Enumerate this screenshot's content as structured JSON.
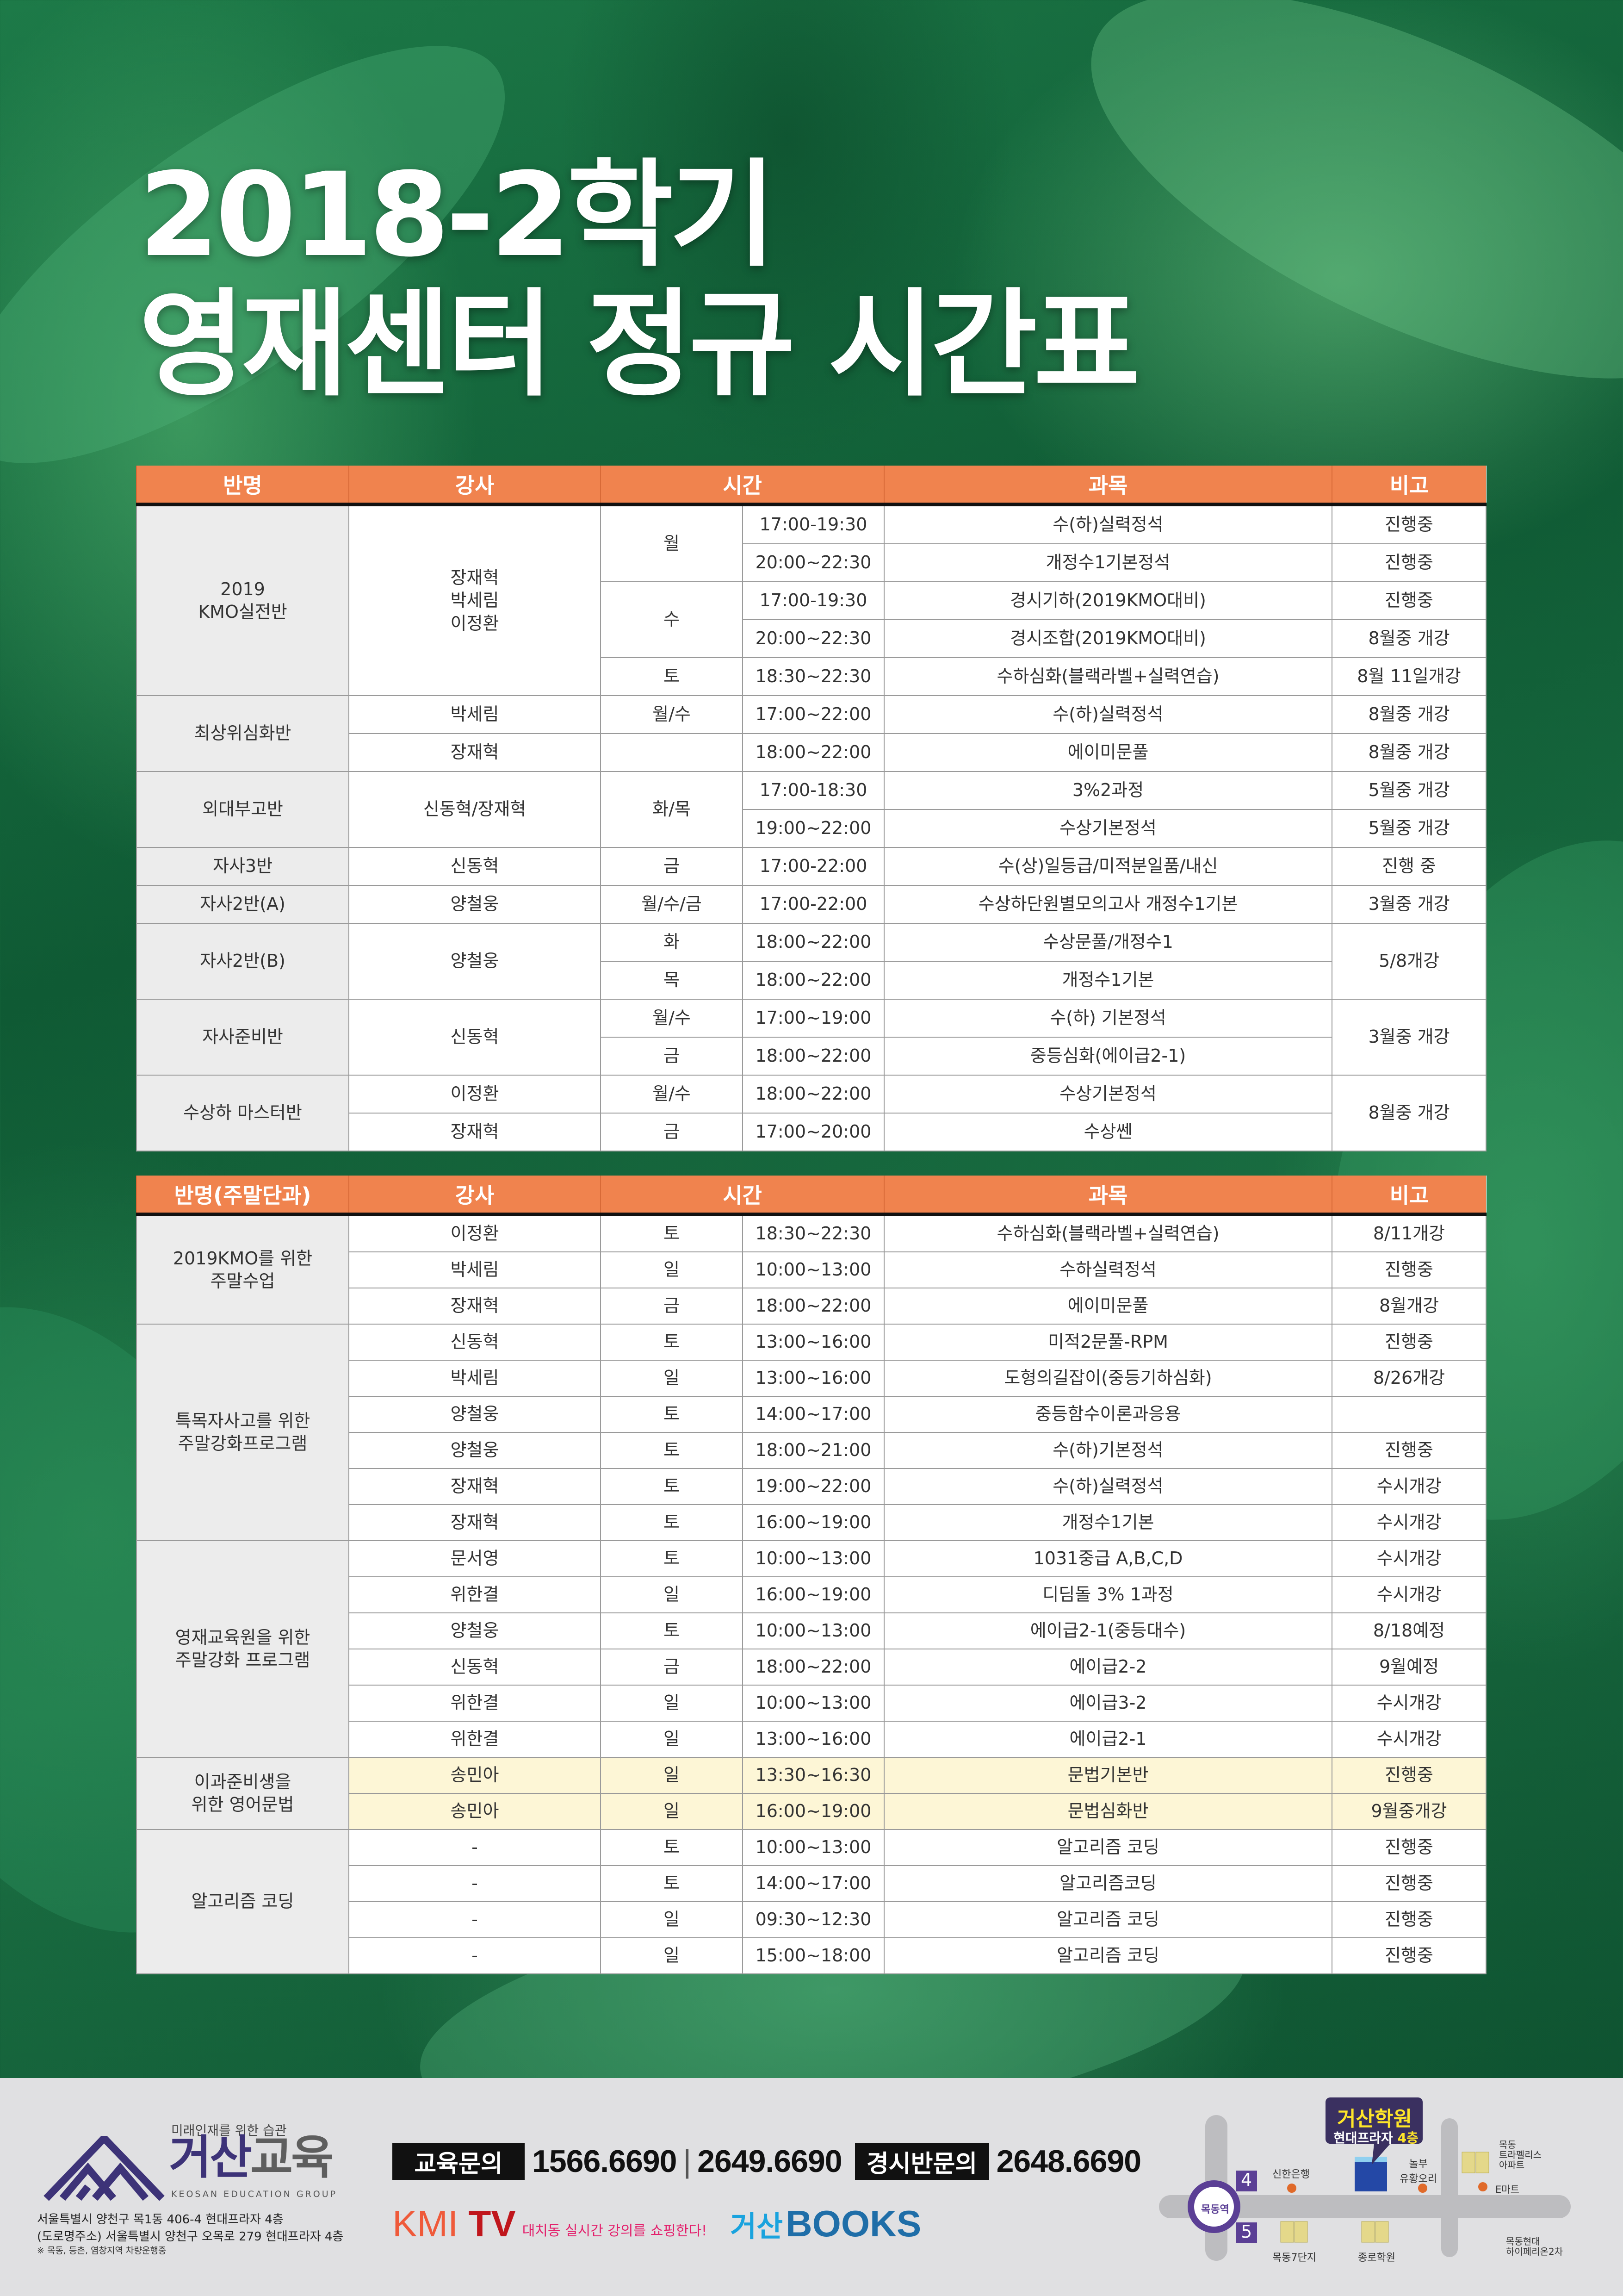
{
  "title": {
    "line1": "2018-2학기",
    "line2": "영재센터 정규 시간표"
  },
  "colors": {
    "header": "#f0834e",
    "class_cell": "#ececec",
    "highlight_row": "#fdf6d6",
    "brand_purple": "#3d3378",
    "kmi_red": "#c0161c",
    "books_blue": "#1f6ea8"
  },
  "tables": [
    {
      "headers": [
        "반명",
        "강사",
        "시간",
        "과목",
        "비고"
      ],
      "rows": [
        {
          "cells": [
            "2019\nKMO실전반",
            "장재혁\n박세림\n이정환",
            "월",
            "17:00-19:30",
            "수(하)실력정석",
            "진행중"
          ]
        },
        {
          "cells": [
            null,
            null,
            null,
            "20:00~22:30",
            "개정수1기본정석",
            "진행중"
          ]
        },
        {
          "cells": [
            null,
            null,
            "수",
            "17:00-19:30",
            "경시기하(2019KMO대비)",
            "진행중"
          ]
        },
        {
          "cells": [
            null,
            null,
            null,
            "20:00~22:30",
            "경시조합(2019KMO대비)",
            "8월중 개강"
          ]
        },
        {
          "cells": [
            null,
            null,
            "토",
            "18:30~22:30",
            "수하심화(블랙라벨+실력연습)",
            "8월 11일개강"
          ]
        },
        {
          "cells": [
            "최상위심화반",
            "박세림",
            "월/수",
            "17:00~22:00",
            "수(하)실력정석",
            "8월중 개강"
          ]
        },
        {
          "cells": [
            null,
            "장재혁",
            "",
            "18:00~22:00",
            "에이미문풀",
            "8월중 개강"
          ]
        },
        {
          "cells": [
            "외대부고반",
            "신동혁/장재혁",
            "화/목",
            "17:00-18:30",
            "3%2과정",
            "5월중 개강"
          ]
        },
        {
          "cells": [
            null,
            null,
            null,
            "19:00~22:00",
            "수상기본정석",
            "5월중 개강"
          ]
        },
        {
          "cells": [
            "자사3반",
            "신동혁",
            "금",
            "17:00-22:00",
            "수(상)일등급/미적분일품/내신",
            "진행 중"
          ]
        },
        {
          "cells": [
            "자사2반(A)",
            "양철웅",
            "월/수/금",
            "17:00-22:00",
            "수상하단원별모의고사 개정수1기본",
            "3월중 개강"
          ]
        },
        {
          "cells": [
            "자사2반(B)",
            "양철웅",
            "화",
            "18:00~22:00",
            "수상문풀/개정수1",
            "5/8개강"
          ]
        },
        {
          "cells": [
            null,
            null,
            "목",
            "18:00~22:00",
            "개정수1기본",
            null
          ]
        },
        {
          "cells": [
            "자사준비반",
            "신동혁",
            "월/수",
            "17:00~19:00",
            "수(하) 기본정석",
            "3월중 개강"
          ]
        },
        {
          "cells": [
            null,
            null,
            "금",
            "18:00~22:00",
            "중등심화(에이급2-1)",
            null
          ]
        },
        {
          "cells": [
            "수상하 마스터반",
            "이정환",
            "월/수",
            "18:00~22:00",
            "수상기본정석",
            "8월중 개강"
          ]
        },
        {
          "cells": [
            null,
            "장재혁",
            "금",
            "17:00~20:00",
            "수상쎈",
            null
          ]
        }
      ]
    },
    {
      "headers": [
        "반명(주말단과)",
        "강사",
        "시간",
        "과목",
        "비고"
      ],
      "rows": [
        {
          "cells": [
            "2019KMO를 위한\n주말수업",
            "이정환",
            "토",
            "18:30~22:30",
            "수하심화(블랙라벨+실력연습)",
            "8/11개강"
          ]
        },
        {
          "cells": [
            null,
            "박세림",
            "일",
            "10:00~13:00",
            "수하실력정석",
            "진행중"
          ]
        },
        {
          "cells": [
            null,
            "장재혁",
            "금",
            "18:00~22:00",
            "에이미문풀",
            "8월개강"
          ]
        },
        {
          "cells": [
            "특목자사고를 위한\n주말강화프로그램",
            "신동혁",
            "토",
            "13:00~16:00",
            "미적2문풀-RPM",
            "진행중"
          ]
        },
        {
          "cells": [
            null,
            "박세림",
            "일",
            "13:00~16:00",
            "도형의길잡이(중등기하심화)",
            "8/26개강"
          ]
        },
        {
          "cells": [
            null,
            "양철웅",
            "토",
            "14:00~17:00",
            "중등함수이론과응용",
            ""
          ]
        },
        {
          "cells": [
            null,
            "양철웅",
            "토",
            "18:00~21:00",
            "수(하)기본정석",
            "진행중"
          ]
        },
        {
          "cells": [
            null,
            "장재혁",
            "토",
            "19:00~22:00",
            "수(하)실력정석",
            "수시개강"
          ]
        },
        {
          "cells": [
            null,
            "장재혁",
            "토",
            "16:00~19:00",
            "개정수1기본",
            "수시개강"
          ]
        },
        {
          "cells": [
            "영재교육원을 위한\n주말강화 프로그램",
            "문서영",
            "토",
            "10:00~13:00",
            "1031중급 A,B,C,D",
            "수시개강"
          ]
        },
        {
          "cells": [
            null,
            "위한결",
            "일",
            "16:00~19:00",
            "디딤돌 3% 1과정",
            "수시개강"
          ]
        },
        {
          "cells": [
            null,
            "양철웅",
            "토",
            "10:00~13:00",
            "에이급2-1(중등대수)",
            "8/18예정"
          ]
        },
        {
          "cells": [
            null,
            "신동혁",
            "금",
            "18:00~22:00",
            "에이급2-2",
            "9월예정"
          ]
        },
        {
          "cells": [
            null,
            "위한결",
            "일",
            "10:00~13:00",
            "에이급3-2",
            "수시개강"
          ]
        },
        {
          "cells": [
            null,
            "위한결",
            "일",
            "13:00~16:00",
            "에이급2-1",
            "수시개강"
          ]
        },
        {
          "cells": [
            "이과준비생을\n위한 영어문법",
            "송민아",
            "일",
            "13:30~16:30",
            "문법기본반",
            "진행중"
          ],
          "highlight": true
        },
        {
          "cells": [
            null,
            "송민아",
            "일",
            "16:00~19:00",
            "문법심화반",
            "9월중개강"
          ],
          "highlight": true
        },
        {
          "cells": [
            "알고리즘 코딩",
            "-",
            "토",
            "10:00~13:00",
            "알고리즘 코딩",
            "진행중"
          ]
        },
        {
          "cells": [
            null,
            "-",
            "토",
            "14:00~17:00",
            "알고리즘코딩",
            "진행중"
          ]
        },
        {
          "cells": [
            null,
            "-",
            "일",
            "09:30~12:30",
            "알고리즘 코딩",
            "진행중"
          ]
        },
        {
          "cells": [
            null,
            "-",
            "일",
            "15:00~18:00",
            "알고리즘 코딩",
            "진행중"
          ]
        }
      ]
    }
  ],
  "footer": {
    "slogan": "미래인재를 위한 습관",
    "brand_ko_1": "거산",
    "brand_ko_2": "교육",
    "brand_en": "KEOSAN EDUCATION GROUP",
    "address1": "서울특별시 양천구 목1동 406-4 현대프라자 4층",
    "address2": "(도로명주소) 서울특별시 양천구 오목로 279 현대프라자 4층",
    "note": "※ 목동, 등촌, 염창지역 차량운행중",
    "contact1_label": "교육문의",
    "contact1_phone1": "1566.6690",
    "contact1_sep": "|",
    "contact1_phone2": "2649.6690",
    "contact2_label": "경시반문의",
    "contact2_phone": "2648.6690",
    "kmi": "KMI",
    "tv": "TV",
    "kmi_tagline": "대치동 실시간 강의를 쇼핑한다!",
    "books_ko": "거산",
    "books_en": "BOOKS"
  },
  "map": {
    "bubble_title": "거산학원",
    "bubble_sub": "현대프라자",
    "bubble_floor": "4층",
    "station": "목동역",
    "exit4": "4",
    "exit5": "5",
    "landmarks": [
      "신한은행",
      "놀부\n유황오리",
      "목동\n트라펠리스\n아파트",
      "E마트",
      "목동7단지",
      "종로학원",
      "목동현대\n하이페리온2차"
    ]
  }
}
